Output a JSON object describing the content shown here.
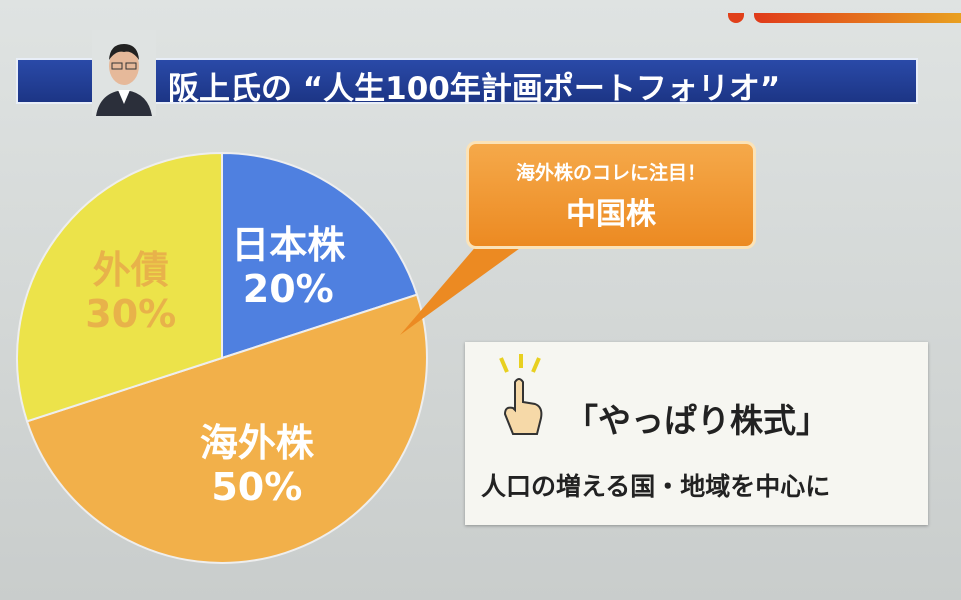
{
  "header": {
    "title": "阪上氏の “人生100年計画ポートフォリオ”"
  },
  "chart_data": {
    "type": "pie",
    "title": "",
    "slices": [
      {
        "label": "日本株",
        "value": 20,
        "value_label": "20%",
        "color": "#4f80e0",
        "text_color": "#ffffff"
      },
      {
        "label": "海外株",
        "value": 50,
        "value_label": "50%",
        "color": "#f2b04a",
        "text_color": "#ffffff"
      },
      {
        "label": "外債",
        "value": 30,
        "value_label": "30%",
        "color": "#ece34a",
        "text_color": "#e8b24a"
      }
    ],
    "start": "12 o'clock",
    "direction": "clockwise"
  },
  "callout": {
    "line1": "海外株のコレに注目！",
    "line2": "中国株"
  },
  "note": {
    "headline": "「やっぱり株式」",
    "sub": "人口の増える国・地域を中心に",
    "icon": "pointing-hand-icon"
  }
}
